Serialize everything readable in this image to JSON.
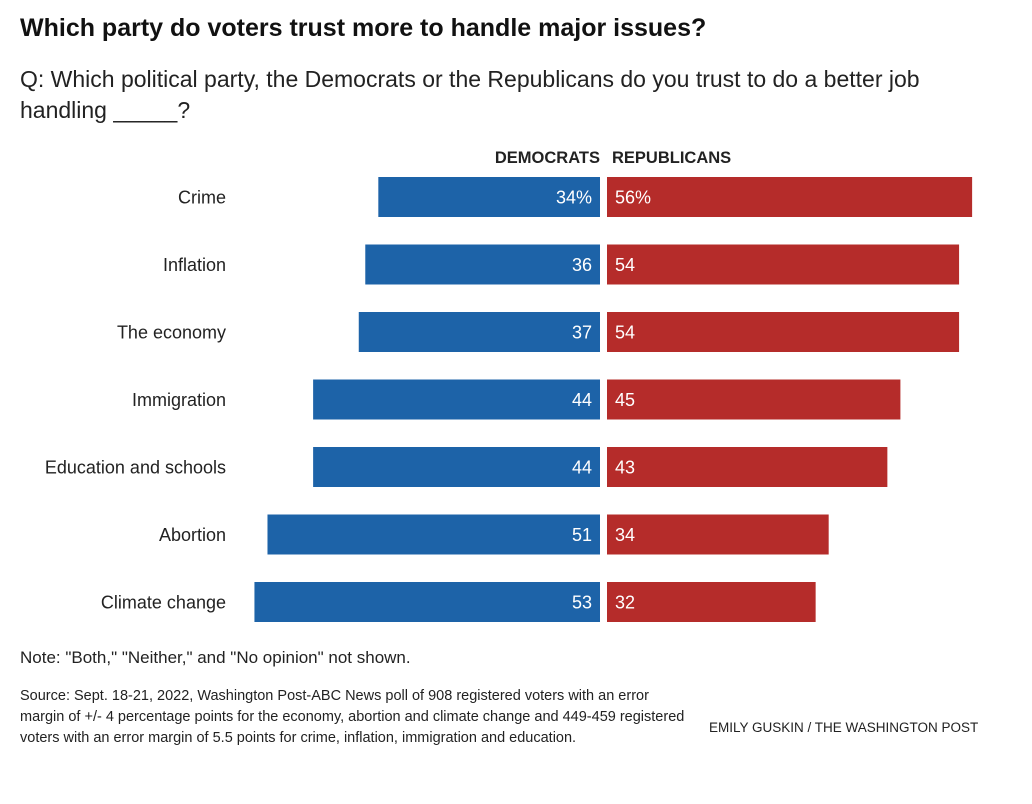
{
  "title": "Which party do voters trust more to handle major issues?",
  "subtitle": "Q: Which political party, the Democrats or the Republicans do you trust to do a better job handling _____?",
  "note": "Note: \"Both,\" \"Neither,\" and \"No opinion\" not shown.",
  "source": "Source: Sept. 18-21, 2022, Washington Post-ABC News poll of 908 registered voters with an error margin of +/- 4 percentage points for the economy, abortion and climate change and 449-459 registered voters with an error margin of 5.5 points for crime, inflation, immigration and education.",
  "credit": "EMILY GUSKIN / THE WASHINGTON POST",
  "colors": {
    "democrats": "#1d63a8",
    "republicans": "#b52c2a"
  },
  "chart_data": {
    "type": "bar",
    "orientation": "horizontal-diverging",
    "categories": [
      "Crime",
      "Inflation",
      "The economy",
      "Immigration",
      "Education and schools",
      "Abortion",
      "Climate change"
    ],
    "series": [
      {
        "name": "DEMOCRATS",
        "values": [
          34,
          36,
          37,
          44,
          44,
          51,
          53
        ],
        "labels": [
          "34%",
          "36",
          "37",
          "44",
          "44",
          "51",
          "53"
        ]
      },
      {
        "name": "REPUBLICANS",
        "values": [
          56,
          54,
          54,
          45,
          43,
          34,
          32
        ],
        "labels": [
          "56%",
          "54",
          "54",
          "45",
          "43",
          "34",
          "32"
        ]
      }
    ],
    "unit": "%",
    "xlim": [
      0,
      56
    ],
    "grid": false,
    "legend": "top-center"
  }
}
